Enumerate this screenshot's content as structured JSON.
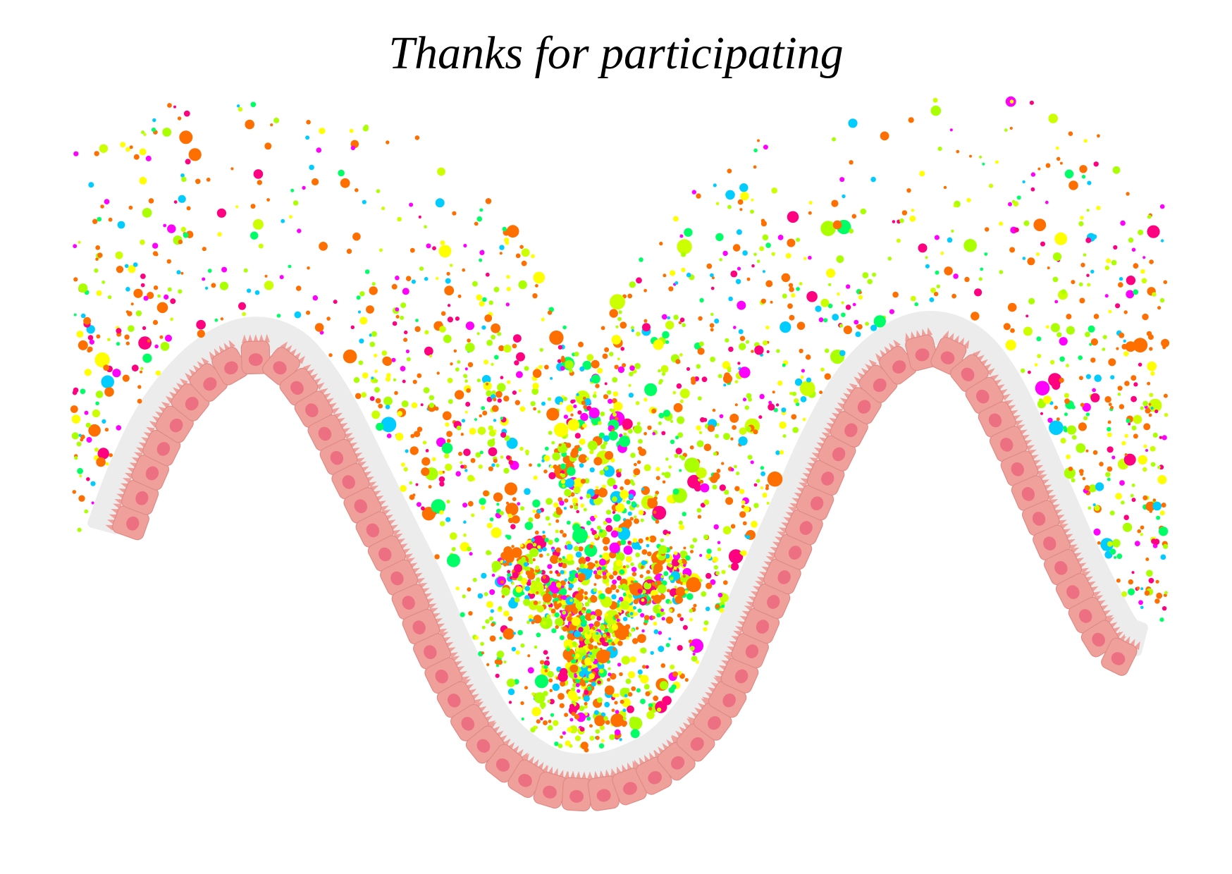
{
  "title": "Thanks for participating",
  "colors": {
    "background": "#ffffff",
    "cell_fill": "#f0a09a",
    "cell_stroke": "#df8a86",
    "nucleus": "#ec6f82",
    "basement_membrane": "#ececec",
    "dots": [
      "#ff6f00",
      "#ff6f00",
      "#ff6f00",
      "#aaff00",
      "#aaff00",
      "#ccff00",
      "#ff00ff",
      "#ff0080",
      "#00ff66",
      "#00ccff",
      "#ffff00"
    ]
  },
  "icons": {
    "tissue": "intestinal-villus-epithelium-icon",
    "particles": "lamina-propria-cells-icon"
  }
}
